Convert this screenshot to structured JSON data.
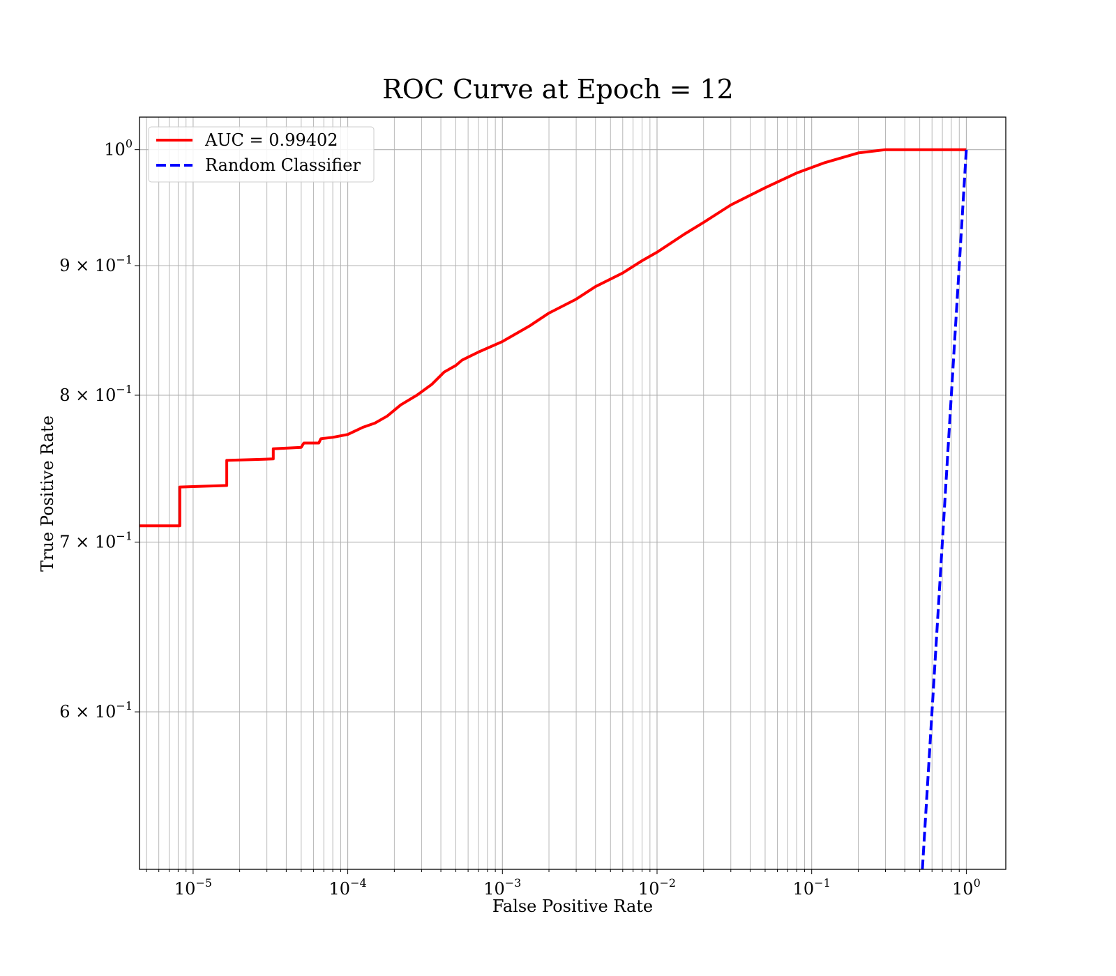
{
  "chart_data": {
    "type": "line",
    "title": "ROC Curve at Epoch = 12",
    "xlabel": "False Positive Rate",
    "ylabel": "True Positive Rate",
    "xscale": "log",
    "yscale": "log",
    "xlim": [
      4.5e-06,
      1.8
    ],
    "ylim": [
      0.52,
      1.03
    ],
    "grid": true,
    "grid_minor": true,
    "legend_position": "upper-left",
    "x_ticks": [
      {
        "value": 1e-05,
        "base": "10",
        "exp": "−5"
      },
      {
        "value": 0.0001,
        "base": "10",
        "exp": "−4"
      },
      {
        "value": 0.001,
        "base": "10",
        "exp": "−3"
      },
      {
        "value": 0.01,
        "base": "10",
        "exp": "−2"
      },
      {
        "value": 0.1,
        "base": "10",
        "exp": "−1"
      },
      {
        "value": 1,
        "base": "10",
        "exp": "0"
      }
    ],
    "y_ticks": [
      {
        "value": 1.0,
        "base": "10",
        "exp": "0"
      },
      {
        "value": 0.9,
        "base": "9 × 10",
        "exp": "−1"
      },
      {
        "value": 0.8,
        "base": "8 × 10",
        "exp": "−1"
      },
      {
        "value": 0.7,
        "base": "7 × 10",
        "exp": "−1"
      },
      {
        "value": 0.6,
        "base": "6 × 10",
        "exp": "−1"
      }
    ],
    "series": [
      {
        "name": "AUC = 0.99402",
        "color": "#ff0000",
        "style": "solid",
        "x": [
          4.5e-06,
          8.2e-06,
          8.2e-06,
          1.65e-05,
          1.65e-05,
          3.3e-05,
          3.3e-05,
          5e-05,
          5.2e-05,
          6.5e-05,
          6.7e-05,
          8e-05,
          0.0001,
          0.000125,
          0.00015,
          0.00018,
          0.00022,
          0.00028,
          0.00035,
          0.00042,
          0.0005,
          0.00055,
          0.0007,
          0.001,
          0.0015,
          0.002,
          0.003,
          0.004,
          0.006,
          0.008,
          0.01,
          0.015,
          0.02,
          0.03,
          0.05,
          0.08,
          0.12,
          0.2,
          0.3,
          0.6,
          1.0
        ],
        "y": [
          0.7105,
          0.7105,
          0.736,
          0.737,
          0.754,
          0.755,
          0.762,
          0.763,
          0.766,
          0.766,
          0.769,
          0.77,
          0.772,
          0.777,
          0.78,
          0.785,
          0.793,
          0.8,
          0.808,
          0.817,
          0.822,
          0.826,
          0.832,
          0.84,
          0.852,
          0.862,
          0.873,
          0.883,
          0.894,
          0.904,
          0.911,
          0.926,
          0.936,
          0.951,
          0.966,
          0.979,
          0.988,
          0.997,
          1.0,
          1.0,
          1.0
        ]
      },
      {
        "name": "Random Classifier",
        "color": "#0000ff",
        "style": "dashed",
        "x": [
          0.52,
          1.0
        ],
        "y": [
          0.52,
          1.0
        ]
      }
    ]
  }
}
